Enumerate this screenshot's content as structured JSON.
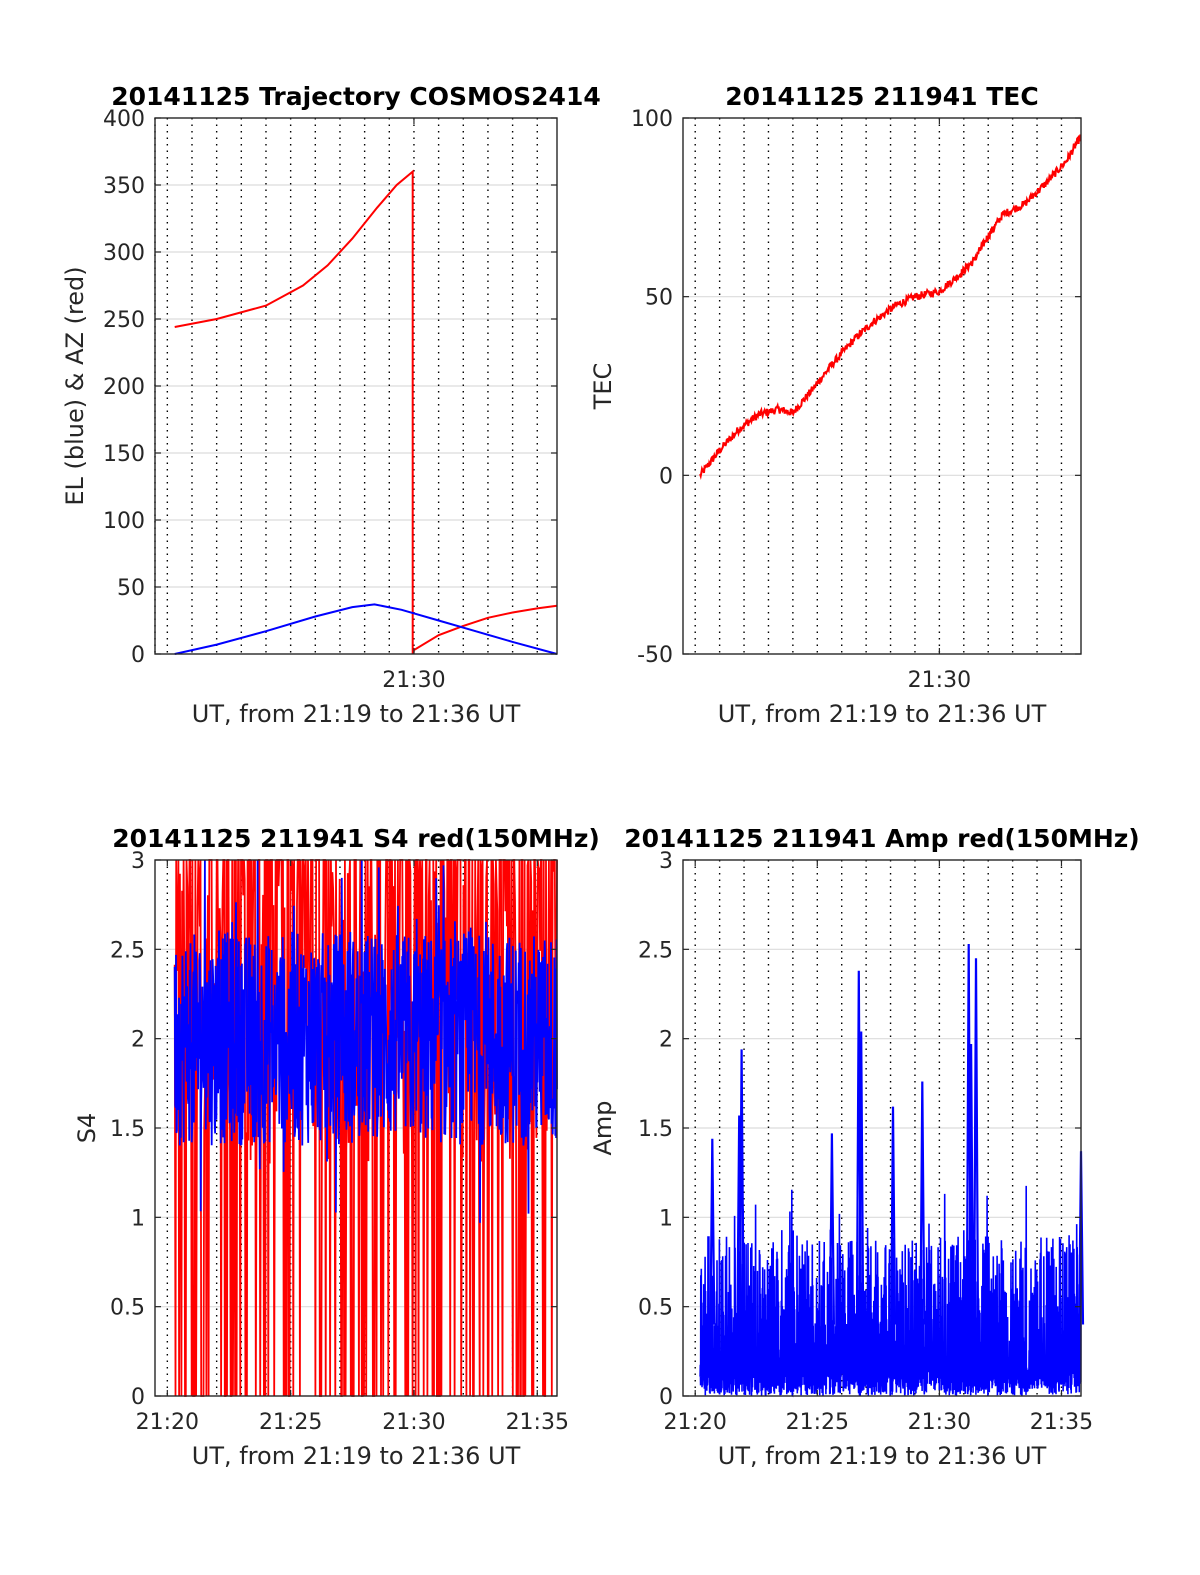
{
  "colors": {
    "el": "#0000ff",
    "az": "#ff0000",
    "tec": "#ff0000",
    "s4_red": "#ff0000",
    "s4_blue": "#0000ff",
    "amp": "#0000ff",
    "grid": "#dcdcdc",
    "axis": "#262626"
  },
  "chart_data": [
    {
      "id": "trajectory",
      "type": "line",
      "title": "20141125 Trajectory COSMOS2414",
      "xlabel": "UT, from 21:19 to 21:36 UT",
      "ylabel": "EL (blue) & AZ (red)",
      "xlim_min": [
        19.5,
        35.8
      ],
      "ylim": [
        0,
        400
      ],
      "yticks": [
        0,
        50,
        100,
        150,
        200,
        250,
        300,
        350,
        400
      ],
      "xticks": [
        {
          "label": "21:30",
          "value": 30
        }
      ],
      "x_gridlines_min": [
        19.5,
        20,
        21,
        22,
        23,
        24,
        25,
        26,
        27,
        28,
        29,
        30,
        31,
        32,
        33,
        34,
        35
      ],
      "grid": true,
      "series": [
        {
          "key": "az",
          "x": [
            20.3,
            22,
            24,
            25.5,
            26.5,
            27.5,
            28.5,
            29.3,
            29.95,
            29.95,
            30.0,
            31,
            32,
            33,
            34,
            35,
            35.8
          ],
          "y": [
            244,
            250,
            260,
            275,
            290,
            310,
            333,
            350,
            360,
            0,
            3,
            14,
            21,
            27,
            31,
            34,
            36
          ]
        },
        {
          "key": "el",
          "x": [
            20.3,
            22,
            24,
            26,
            27.5,
            28.4,
            29.5,
            31,
            32.5,
            34,
            35.8
          ],
          "y": [
            0,
            7,
            17,
            28,
            35,
            37,
            33,
            25,
            17,
            9,
            0
          ]
        }
      ]
    },
    {
      "id": "tec",
      "type": "line",
      "title": "20141125 211941 TEC",
      "xlabel": "UT, from 21:19 to 21:36 UT",
      "ylabel": "TEC",
      "xlim_min": [
        19.5,
        35.8
      ],
      "ylim": [
        -50,
        100
      ],
      "yticks": [
        -50,
        0,
        50,
        100
      ],
      "xticks": [
        {
          "label": "21:30",
          "value": 30
        }
      ],
      "x_gridlines_min": [
        20,
        21,
        22,
        23,
        24,
        25,
        26,
        27,
        28,
        29,
        30,
        31,
        32,
        33,
        34,
        35
      ],
      "grid": true,
      "series": [
        {
          "key": "tec",
          "x": [
            20.2,
            21.0,
            21.8,
            22.6,
            23.4,
            24.0,
            24.8,
            25.6,
            26.5,
            27.3,
            28.2,
            29.0,
            30.0,
            30.8,
            31.4,
            32.0,
            32.6,
            33.5,
            34.4,
            35.2,
            35.8
          ],
          "y": [
            0,
            7,
            13,
            17,
            18.5,
            17.5,
            24,
            31,
            38,
            43,
            47.5,
            50,
            51.5,
            56,
            60,
            67,
            73,
            76,
            82,
            88,
            95
          ]
        }
      ]
    },
    {
      "id": "s4",
      "type": "line",
      "title": "20141125 211941 S4 red(150MHz)",
      "xlabel": "UT, from 21:19 to 21:36 UT",
      "ylabel": "S4",
      "xlim_min": [
        19.5,
        35.8
      ],
      "ylim": [
        0,
        3
      ],
      "yticks": [
        "0",
        "0.5",
        "1",
        "1.5",
        "2",
        "2.5",
        "3"
      ],
      "xticks": [
        {
          "label": "21:20",
          "value": 20
        },
        {
          "label": "21:25",
          "value": 25
        },
        {
          "label": "21:30",
          "value": 30
        },
        {
          "label": "21:35",
          "value": 35
        }
      ],
      "x_gridlines_min": [
        20,
        21,
        22,
        23,
        24,
        25,
        26,
        27,
        28,
        29,
        30,
        31,
        32,
        33,
        34,
        35
      ],
      "grid": true,
      "series": [
        {
          "key": "s4_red",
          "x_range": [
            20.3,
            35.8
          ],
          "min": 0,
          "max": 3,
          "pattern": "dense saturating spikes 0–3"
        },
        {
          "key": "s4_blue",
          "x_range": [
            20.3,
            35.8
          ],
          "min": 0.85,
          "max": 3,
          "pattern": "dense noise centered near 2"
        }
      ]
    },
    {
      "id": "amp",
      "type": "line",
      "title": "20141125 211941 Amp red(150MHz)",
      "xlabel": "UT, from 21:19 to 21:36 UT",
      "ylabel": "Amp",
      "xlim_min": [
        19.5,
        35.8
      ],
      "ylim": [
        0,
        3
      ],
      "yticks": [
        "0",
        "0.5",
        "1",
        "1.5",
        "2",
        "2.5",
        "3"
      ],
      "xticks": [
        {
          "label": "21:20",
          "value": 20
        },
        {
          "label": "21:25",
          "value": 25
        },
        {
          "label": "21:30",
          "value": 30
        },
        {
          "label": "21:35",
          "value": 35
        }
      ],
      "x_gridlines_min": [
        20,
        21,
        22,
        23,
        24,
        25,
        26,
        27,
        28,
        29,
        30,
        31,
        32,
        33,
        34,
        35
      ],
      "grid": true,
      "series": [
        {
          "key": "amp",
          "x_range": [
            20.2,
            35.8
          ],
          "baseline_max": 1.1,
          "pattern": "dense noise 0–1.2",
          "peaks": [
            {
              "x": 21.9,
              "y": 1.94
            },
            {
              "x": 21.8,
              "y": 1.57
            },
            {
              "x": 26.7,
              "y": 2.38
            },
            {
              "x": 26.8,
              "y": 2.04
            },
            {
              "x": 31.2,
              "y": 2.53
            },
            {
              "x": 31.5,
              "y": 2.45
            },
            {
              "x": 31.3,
              "y": 1.97
            },
            {
              "x": 29.3,
              "y": 1.76
            },
            {
              "x": 28.1,
              "y": 1.62
            },
            {
              "x": 20.7,
              "y": 1.44
            },
            {
              "x": 25.6,
              "y": 1.47
            },
            {
              "x": 35.8,
              "y": 1.37
            }
          ]
        }
      ]
    }
  ]
}
